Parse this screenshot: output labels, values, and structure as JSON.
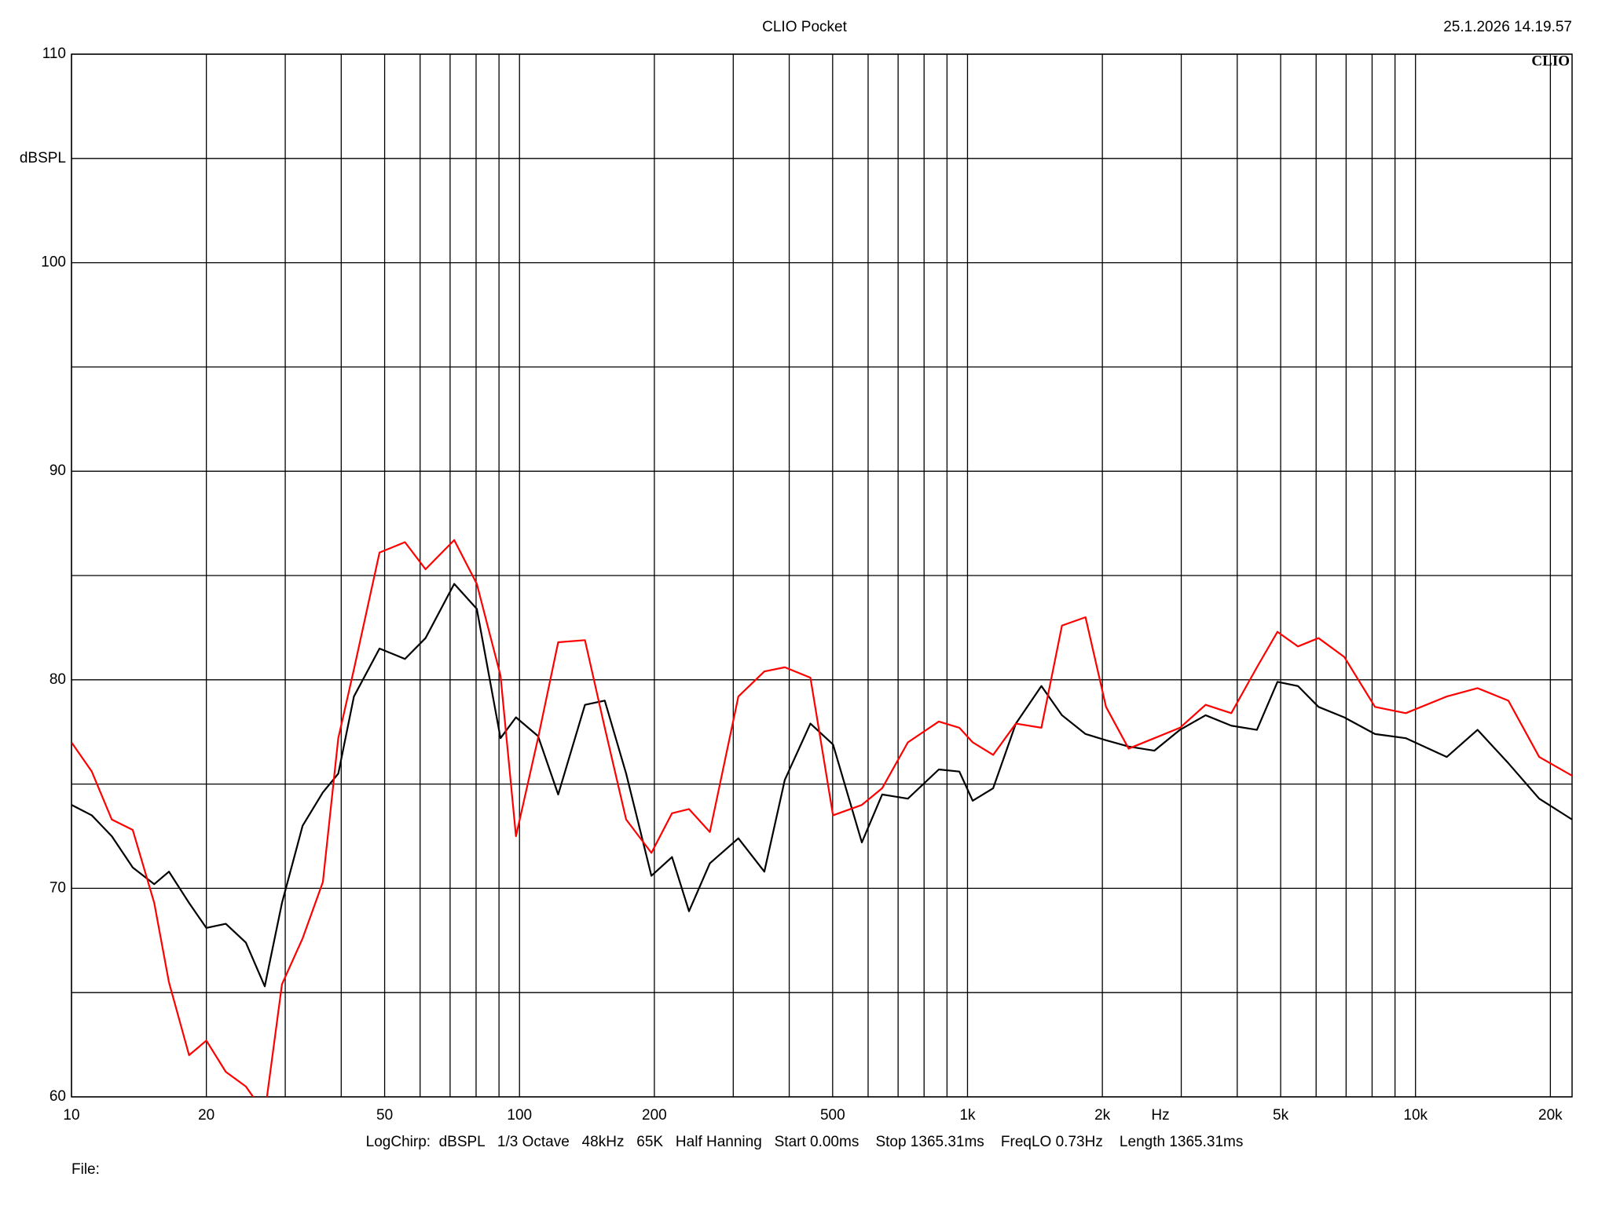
{
  "header": {
    "title": "CLIO Pocket",
    "timestamp": "25.1.2026 14.19.57",
    "logo": "CLIO"
  },
  "chart_data": {
    "type": "line",
    "xscale": "log",
    "grid": true,
    "ylabel": "dBSPL",
    "x_unit": "Hz",
    "xlim": [
      10,
      22360
    ],
    "ylim": [
      60,
      110
    ],
    "xticks": [
      10,
      20,
      50,
      100,
      200,
      500,
      {
        "value": 1000,
        "label": "1k"
      },
      {
        "value": 2000,
        "label": "2k"
      },
      {
        "value": 5000,
        "label": "5k"
      },
      {
        "value": 10000,
        "label": "10k"
      },
      {
        "value": 20000,
        "label": "20k"
      }
    ],
    "xminor": [
      30,
      40,
      60,
      70,
      80,
      90,
      300,
      400,
      600,
      700,
      800,
      900,
      3000,
      4000,
      6000,
      7000,
      8000,
      9000
    ],
    "yticks": [
      60,
      70,
      80,
      90,
      100,
      110
    ],
    "yminor": [
      65,
      75,
      85,
      95,
      105
    ],
    "x": [
      10,
      11.1,
      12.3,
      13.7,
      15.3,
      16.5,
      18.3,
      20,
      22.1,
      24.5,
      27,
      29.5,
      32.8,
      36.4,
      39.4,
      42.7,
      48.7,
      55.5,
      61.7,
      71.5,
      80.3,
      90.7,
      98.2,
      110,
      122,
      140,
      155,
      173,
      197,
      219,
      239,
      266,
      308,
      352,
      391,
      446,
      501,
      581,
      645,
      736,
      863,
      959,
      1027,
      1141,
      1282,
      1462,
      1625,
      1834,
      2038,
      2289,
      2612,
      2980,
      3400,
      3880,
      4426,
      4919,
      5466,
      6074,
      6931,
      8121,
      9511,
      11745,
      13754,
      16117,
      18883,
      22360
    ],
    "series": [
      {
        "color": "#000000",
        "values": [
          74.0,
          73.5,
          72.5,
          71.0,
          70.2,
          70.8,
          69.3,
          68.1,
          68.3,
          67.4,
          65.3,
          69.3,
          73.0,
          74.6,
          75.5,
          79.2,
          81.5,
          81.0,
          82.0,
          84.6,
          83.4,
          77.2,
          78.2,
          77.3,
          74.5,
          78.8,
          79.0,
          75.5,
          70.6,
          71.5,
          68.9,
          71.2,
          72.4,
          70.8,
          75.2,
          77.9,
          76.9,
          72.2,
          74.5,
          74.3,
          75.7,
          75.6,
          74.2,
          74.8,
          77.9,
          79.7,
          78.3,
          77.4,
          77.1,
          76.8,
          76.6,
          77.6,
          78.3,
          77.8,
          77.6,
          79.9,
          79.7,
          78.7,
          78.2,
          77.4,
          77.2,
          76.3,
          77.6,
          76.0,
          74.3,
          73.3
        ]
      },
      {
        "color": "#ff0000",
        "values": [
          77.0,
          75.6,
          73.3,
          72.8,
          69.3,
          65.5,
          62.0,
          62.7,
          61.2,
          60.5,
          59.2,
          65.4,
          67.6,
          70.3,
          77.2,
          80.5,
          86.1,
          86.6,
          85.3,
          86.7,
          84.6,
          80.2,
          72.5,
          77.2,
          81.8,
          81.9,
          77.7,
          73.3,
          71.7,
          73.6,
          73.8,
          72.7,
          79.2,
          80.4,
          80.6,
          80.1,
          73.5,
          74.0,
          74.8,
          77.0,
          78.0,
          77.7,
          77.0,
          76.4,
          77.9,
          77.7,
          82.6,
          83.0,
          78.7,
          76.7,
          77.2,
          77.7,
          78.8,
          78.4,
          80.6,
          82.3,
          81.6,
          82.0,
          81.1,
          78.7,
          78.4,
          79.2,
          79.6,
          79.0,
          76.3,
          75.4
        ]
      }
    ]
  },
  "footer": {
    "settings": "LogChirp:  dBSPL   1/3 Octave   48kHz   65K   Half Hanning   Start 0.00ms    Stop 1365.31ms    FreqLO 0.73Hz    Length 1365.31ms",
    "file": "File:"
  }
}
